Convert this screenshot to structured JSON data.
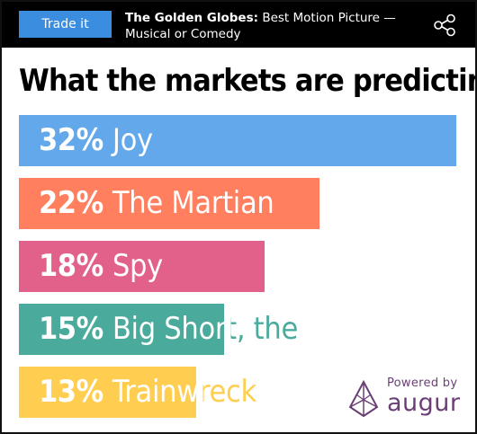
{
  "header": {
    "trade_label": "Trade it",
    "title_bold": "The Golden Globes:",
    "title_rest": " Best Motion Picture — Musical or Comedy"
  },
  "headline": "What the markets are predicting",
  "chart_data": {
    "type": "bar",
    "orientation": "horizontal",
    "title": "What the markets are predicting",
    "xlim": [
      0,
      32
    ],
    "categories": [
      "Joy",
      "The Martian",
      "Spy",
      "Big Short, the",
      "Trainwreck"
    ],
    "values": [
      32,
      22,
      18,
      15,
      13
    ],
    "value_labels": [
      "32%",
      "22%",
      "18%",
      "15%",
      "13%"
    ],
    "colors": [
      "#62a8ea",
      "#ff7f5f",
      "#e1618a",
      "#4aab9c",
      "#ffce50"
    ]
  },
  "branding": {
    "powered_by": "Powered by",
    "brand": "augur",
    "brand_color": "#6b3f76",
    "icon": "augur-logo-icon"
  },
  "icons": {
    "share": "share-icon"
  }
}
